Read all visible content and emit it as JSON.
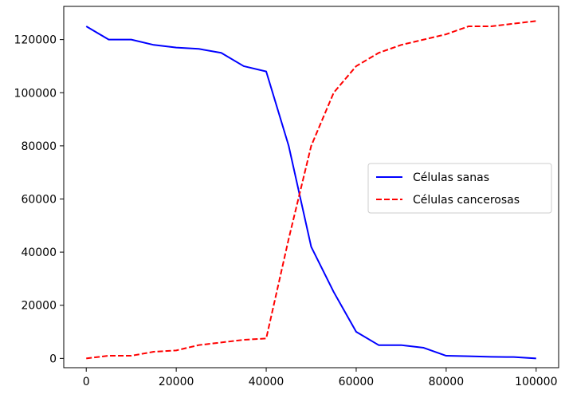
{
  "chart_data": {
    "type": "line",
    "title": "",
    "xlabel": "",
    "ylabel": "",
    "xlim": [
      -5000,
      105000
    ],
    "ylim": [
      -3500,
      132500
    ],
    "xticks": [
      0,
      20000,
      40000,
      60000,
      80000,
      100000
    ],
    "yticks": [
      0,
      20000,
      40000,
      60000,
      80000,
      100000,
      120000
    ],
    "grid": false,
    "legend_position": "center-right",
    "x": [
      0,
      5000,
      10000,
      15000,
      20000,
      25000,
      30000,
      35000,
      40000,
      45000,
      50000,
      55000,
      60000,
      65000,
      70000,
      75000,
      80000,
      85000,
      90000,
      95000,
      100000
    ],
    "series": [
      {
        "name": "Células sanas",
        "color": "#0000ff",
        "linestyle": "solid",
        "values": [
          125000,
          120000,
          120000,
          118000,
          117000,
          116500,
          115000,
          110000,
          108000,
          80000,
          42000,
          25000,
          10000,
          5000,
          5000,
          4000,
          1000,
          800,
          600,
          500,
          0
        ]
      },
      {
        "name": "Células cancerosas",
        "color": "#ff0000",
        "linestyle": "dashed",
        "values": [
          0,
          1000,
          1000,
          2500,
          3000,
          5000,
          6000,
          7000,
          7500,
          45000,
          80000,
          100000,
          110000,
          115000,
          118000,
          120000,
          122000,
          125000,
          125000,
          126000,
          127000
        ]
      }
    ]
  }
}
